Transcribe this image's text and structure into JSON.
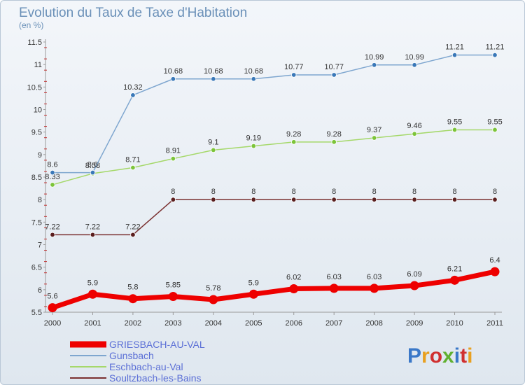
{
  "chart_data": {
    "type": "line",
    "title": "Evolution du Taux de Taxe d'Habitation",
    "subtitle": "(en %)",
    "x": [
      "2000",
      "2001",
      "2002",
      "2003",
      "2004",
      "2005",
      "2006",
      "2007",
      "2008",
      "2009",
      "2010",
      "2011"
    ],
    "ylim": [
      5.5,
      11.5
    ],
    "yticks": [
      "5.5",
      "6",
      "6.5",
      "7",
      "7.5",
      "8",
      "8.5",
      "9",
      "9.5",
      "10",
      "10.5",
      "11",
      "11.5"
    ],
    "grid": false,
    "legend_position": "bottom-left",
    "series": [
      {
        "name": "GRIESBACH-AU-VAL",
        "color": "#ee0000",
        "point_color": "#ee0000",
        "values": [
          5.6,
          5.9,
          5.8,
          5.85,
          5.78,
          5.9,
          6.02,
          6.03,
          6.03,
          6.09,
          6.21,
          6.4
        ],
        "labels": [
          "5.6",
          "5.9",
          "5.8",
          "5.85",
          "5.78",
          "5.9",
          "6.02",
          "6.03",
          "6.03",
          "6.09",
          "6.21",
          "6.4"
        ]
      },
      {
        "name": "Gunsbach",
        "color": "#7ea6cf",
        "point_color": "#3a78b8",
        "values": [
          8.6,
          8.6,
          10.32,
          10.68,
          10.68,
          10.68,
          10.77,
          10.77,
          10.99,
          10.99,
          11.21,
          11.21
        ],
        "labels": [
          "8.6",
          "8.6",
          "10.32",
          "10.68",
          "10.68",
          "10.68",
          "10.77",
          "10.77",
          "10.99",
          "10.99",
          "11.21",
          "11.21"
        ]
      },
      {
        "name": "Eschbach-au-Val",
        "color": "#a5d86a",
        "point_color": "#7cc43a",
        "values": [
          8.33,
          8.58,
          8.71,
          8.91,
          9.1,
          9.19,
          9.28,
          9.28,
          9.37,
          9.46,
          9.55,
          9.55
        ],
        "labels": [
          "8.33",
          "8.58",
          "8.71",
          "8.91",
          "9.1",
          "9.19",
          "9.28",
          "9.28",
          "9.37",
          "9.46",
          "9.55",
          "9.55"
        ]
      },
      {
        "name": "Soultzbach-les-Bains",
        "color": "#7a3030",
        "point_color": "#5a1e1e",
        "values": [
          7.22,
          7.22,
          7.22,
          8,
          8,
          8,
          8,
          8,
          8,
          8,
          8,
          8
        ],
        "labels": [
          "7.22",
          "7.22",
          "7.22",
          "8",
          "8",
          "8",
          "8",
          "8",
          "8",
          "8",
          "8",
          "8"
        ]
      }
    ]
  },
  "legend": [
    {
      "label": "GRIESBACH-AU-VAL"
    },
    {
      "label": "Gunsbach"
    },
    {
      "label": "Eschbach-au-Val"
    },
    {
      "label": "Soultzbach-les-Bains"
    }
  ],
  "logo": {
    "text": "Proxiti"
  }
}
